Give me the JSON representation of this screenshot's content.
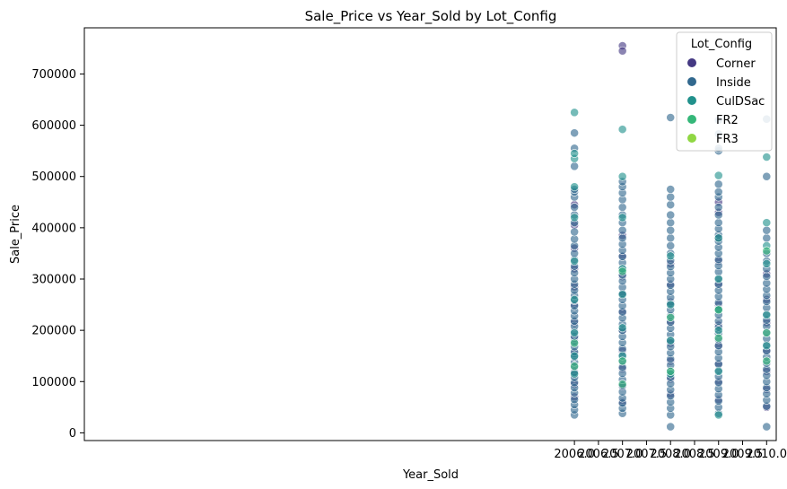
{
  "chart_data": {
    "type": "scatter",
    "title": "Sale_Price vs Year_Sold by Lot_Config",
    "xlabel": "Year_Sold",
    "ylabel": "Sale_Price",
    "xlim": [
      1995.8,
      2010.2
    ],
    "ylim": [
      -15000,
      790000
    ],
    "xticks": [
      2006.0,
      2006.5,
      2007.0,
      2007.5,
      2008.0,
      2008.5,
      2009.0,
      2009.5,
      2010.0
    ],
    "xtick_labels": [
      "2006.0",
      "2006.5",
      "2007.0",
      "2007.5",
      "2008.0",
      "2008.5",
      "2009.0",
      "2009.5",
      "2010.0"
    ],
    "yticks": [
      0,
      100000,
      200000,
      300000,
      400000,
      500000,
      600000,
      700000
    ],
    "ytick_labels": [
      "0",
      "100000",
      "200000",
      "300000",
      "400000",
      "500000",
      "600000",
      "700000"
    ],
    "grid": false,
    "legend": {
      "title": "Lot_Config",
      "placement": "top-right"
    },
    "series": [
      {
        "name": "Corner",
        "color": "#443983",
        "points": [
          [
            2006,
            70000
          ],
          [
            2006,
            95000
          ],
          [
            2006,
            120000
          ],
          [
            2006,
            155000
          ],
          [
            2006,
            185000
          ],
          [
            2006,
            215000
          ],
          [
            2006,
            250000
          ],
          [
            2006,
            285000
          ],
          [
            2006,
            320000
          ],
          [
            2006,
            360000
          ],
          [
            2006,
            405000
          ],
          [
            2006,
            445000
          ],
          [
            2007,
            60000
          ],
          [
            2007,
            90000
          ],
          [
            2007,
            125000
          ],
          [
            2007,
            160000
          ],
          [
            2007,
            200000
          ],
          [
            2007,
            235000
          ],
          [
            2007,
            270000
          ],
          [
            2007,
            305000
          ],
          [
            2007,
            345000
          ],
          [
            2007,
            385000
          ],
          [
            2007,
            755000
          ],
          [
            2007,
            745000
          ],
          [
            2008,
            75000
          ],
          [
            2008,
            105000
          ],
          [
            2008,
            140000
          ],
          [
            2008,
            175000
          ],
          [
            2008,
            215000
          ],
          [
            2008,
            255000
          ],
          [
            2008,
            290000
          ],
          [
            2008,
            330000
          ],
          [
            2009,
            65000
          ],
          [
            2009,
            100000
          ],
          [
            2009,
            135000
          ],
          [
            2009,
            170000
          ],
          [
            2009,
            210000
          ],
          [
            2009,
            250000
          ],
          [
            2009,
            290000
          ],
          [
            2009,
            335000
          ],
          [
            2009,
            380000
          ],
          [
            2009,
            430000
          ],
          [
            2009,
            450000
          ],
          [
            2010,
            50000
          ],
          [
            2010,
            85000
          ],
          [
            2010,
            120000
          ],
          [
            2010,
            160000
          ],
          [
            2010,
            215000
          ],
          [
            2010,
            260000
          ],
          [
            2010,
            310000
          ]
        ]
      },
      {
        "name": "Inside",
        "color": "#31688e",
        "points": [
          [
            2006,
            35000
          ],
          [
            2006,
            45000
          ],
          [
            2006,
            55000
          ],
          [
            2006,
            65000
          ],
          [
            2006,
            78000
          ],
          [
            2006,
            88000
          ],
          [
            2006,
            98000
          ],
          [
            2006,
            108000
          ],
          [
            2006,
            118000
          ],
          [
            2006,
            128000
          ],
          [
            2006,
            138000
          ],
          [
            2006,
            148000
          ],
          [
            2006,
            158000
          ],
          [
            2006,
            168000
          ],
          [
            2006,
            178000
          ],
          [
            2006,
            188000
          ],
          [
            2006,
            198000
          ],
          [
            2006,
            208000
          ],
          [
            2006,
            218000
          ],
          [
            2006,
            228000
          ],
          [
            2006,
            238000
          ],
          [
            2006,
            248000
          ],
          [
            2006,
            258000
          ],
          [
            2006,
            268000
          ],
          [
            2006,
            278000
          ],
          [
            2006,
            290000
          ],
          [
            2006,
            300000
          ],
          [
            2006,
            312000
          ],
          [
            2006,
            325000
          ],
          [
            2006,
            338000
          ],
          [
            2006,
            350000
          ],
          [
            2006,
            365000
          ],
          [
            2006,
            378000
          ],
          [
            2006,
            392000
          ],
          [
            2006,
            410000
          ],
          [
            2006,
            425000
          ],
          [
            2006,
            440000
          ],
          [
            2006,
            460000
          ],
          [
            2006,
            470000
          ],
          [
            2006,
            475000
          ],
          [
            2006,
            520000
          ],
          [
            2006,
            555000
          ],
          [
            2006,
            585000
          ],
          [
            2007,
            38000
          ],
          [
            2007,
            48000
          ],
          [
            2007,
            58000
          ],
          [
            2007,
            68000
          ],
          [
            2007,
            80000
          ],
          [
            2007,
            92000
          ],
          [
            2007,
            104000
          ],
          [
            2007,
            116000
          ],
          [
            2007,
            128000
          ],
          [
            2007,
            140000
          ],
          [
            2007,
            152000
          ],
          [
            2007,
            164000
          ],
          [
            2007,
            176000
          ],
          [
            2007,
            188000
          ],
          [
            2007,
            200000
          ],
          [
            2007,
            212000
          ],
          [
            2007,
            224000
          ],
          [
            2007,
            236000
          ],
          [
            2007,
            248000
          ],
          [
            2007,
            260000
          ],
          [
            2007,
            272000
          ],
          [
            2007,
            284000
          ],
          [
            2007,
            296000
          ],
          [
            2007,
            308000
          ],
          [
            2007,
            320000
          ],
          [
            2007,
            332000
          ],
          [
            2007,
            344000
          ],
          [
            2007,
            356000
          ],
          [
            2007,
            368000
          ],
          [
            2007,
            380000
          ],
          [
            2007,
            395000
          ],
          [
            2007,
            410000
          ],
          [
            2007,
            425000
          ],
          [
            2007,
            440000
          ],
          [
            2007,
            455000
          ],
          [
            2007,
            468000
          ],
          [
            2007,
            480000
          ],
          [
            2007,
            490000
          ],
          [
            2008,
            12000
          ],
          [
            2008,
            35000
          ],
          [
            2008,
            48000
          ],
          [
            2008,
            60000
          ],
          [
            2008,
            72000
          ],
          [
            2008,
            84000
          ],
          [
            2008,
            96000
          ],
          [
            2008,
            108000
          ],
          [
            2008,
            120000
          ],
          [
            2008,
            132000
          ],
          [
            2008,
            144000
          ],
          [
            2008,
            156000
          ],
          [
            2008,
            168000
          ],
          [
            2008,
            180000
          ],
          [
            2008,
            192000
          ],
          [
            2008,
            204000
          ],
          [
            2008,
            216000
          ],
          [
            2008,
            228000
          ],
          [
            2008,
            240000
          ],
          [
            2008,
            252000
          ],
          [
            2008,
            264000
          ],
          [
            2008,
            276000
          ],
          [
            2008,
            288000
          ],
          [
            2008,
            300000
          ],
          [
            2008,
            312000
          ],
          [
            2008,
            324000
          ],
          [
            2008,
            336000
          ],
          [
            2008,
            350000
          ],
          [
            2008,
            365000
          ],
          [
            2008,
            380000
          ],
          [
            2008,
            395000
          ],
          [
            2008,
            410000
          ],
          [
            2008,
            425000
          ],
          [
            2008,
            445000
          ],
          [
            2008,
            460000
          ],
          [
            2008,
            475000
          ],
          [
            2008,
            615000
          ],
          [
            2009,
            38000
          ],
          [
            2009,
            50000
          ],
          [
            2009,
            62000
          ],
          [
            2009,
            74000
          ],
          [
            2009,
            86000
          ],
          [
            2009,
            98000
          ],
          [
            2009,
            110000
          ],
          [
            2009,
            122000
          ],
          [
            2009,
            134000
          ],
          [
            2009,
            146000
          ],
          [
            2009,
            158000
          ],
          [
            2009,
            170000
          ],
          [
            2009,
            182000
          ],
          [
            2009,
            194000
          ],
          [
            2009,
            206000
          ],
          [
            2009,
            218000
          ],
          [
            2009,
            230000
          ],
          [
            2009,
            242000
          ],
          [
            2009,
            254000
          ],
          [
            2009,
            266000
          ],
          [
            2009,
            278000
          ],
          [
            2009,
            290000
          ],
          [
            2009,
            302000
          ],
          [
            2009,
            314000
          ],
          [
            2009,
            326000
          ],
          [
            2009,
            338000
          ],
          [
            2009,
            350000
          ],
          [
            2009,
            362000
          ],
          [
            2009,
            374000
          ],
          [
            2009,
            386000
          ],
          [
            2009,
            398000
          ],
          [
            2009,
            410000
          ],
          [
            2009,
            425000
          ],
          [
            2009,
            440000
          ],
          [
            2009,
            460000
          ],
          [
            2009,
            470000
          ],
          [
            2009,
            485000
          ],
          [
            2009,
            550000
          ],
          [
            2009,
            555000
          ],
          [
            2009,
            583000
          ],
          [
            2009,
            610000
          ],
          [
            2010,
            12000
          ],
          [
            2010,
            52000
          ],
          [
            2010,
            64000
          ],
          [
            2010,
            76000
          ],
          [
            2010,
            88000
          ],
          [
            2010,
            100000
          ],
          [
            2010,
            112000
          ],
          [
            2010,
            124000
          ],
          [
            2010,
            136000
          ],
          [
            2010,
            148000
          ],
          [
            2010,
            160000
          ],
          [
            2010,
            172000
          ],
          [
            2010,
            184000
          ],
          [
            2010,
            196000
          ],
          [
            2010,
            208000
          ],
          [
            2010,
            220000
          ],
          [
            2010,
            232000
          ],
          [
            2010,
            244000
          ],
          [
            2010,
            256000
          ],
          [
            2010,
            268000
          ],
          [
            2010,
            280000
          ],
          [
            2010,
            292000
          ],
          [
            2010,
            305000
          ],
          [
            2010,
            320000
          ],
          [
            2010,
            335000
          ],
          [
            2010,
            350000
          ],
          [
            2010,
            380000
          ],
          [
            2010,
            395000
          ],
          [
            2010,
            500000
          ],
          [
            2010,
            612000
          ]
        ]
      },
      {
        "name": "CulDSac",
        "color": "#21918c",
        "points": [
          [
            2006,
            115000
          ],
          [
            2006,
            150000
          ],
          [
            2006,
            195000
          ],
          [
            2006,
            260000
          ],
          [
            2006,
            335000
          ],
          [
            2006,
            420000
          ],
          [
            2006,
            480000
          ],
          [
            2006,
            535000
          ],
          [
            2006,
            545000
          ],
          [
            2006,
            625000
          ],
          [
            2007,
            150000
          ],
          [
            2007,
            205000
          ],
          [
            2007,
            270000
          ],
          [
            2007,
            320000
          ],
          [
            2007,
            420000
          ],
          [
            2007,
            500000
          ],
          [
            2007,
            592000
          ],
          [
            2008,
            115000
          ],
          [
            2008,
            180000
          ],
          [
            2008,
            250000
          ],
          [
            2008,
            345000
          ],
          [
            2009,
            35000
          ],
          [
            2009,
            120000
          ],
          [
            2009,
            200000
          ],
          [
            2009,
            240000
          ],
          [
            2009,
            300000
          ],
          [
            2009,
            380000
          ],
          [
            2009,
            502000
          ],
          [
            2010,
            170000
          ],
          [
            2010,
            230000
          ],
          [
            2010,
            330000
          ],
          [
            2010,
            365000
          ],
          [
            2010,
            410000
          ],
          [
            2010,
            538000
          ]
        ]
      },
      {
        "name": "FR2",
        "color": "#35b779",
        "points": [
          [
            2006,
            130000
          ],
          [
            2006,
            175000
          ],
          [
            2007,
            95000
          ],
          [
            2007,
            140000
          ],
          [
            2007,
            315000
          ],
          [
            2008,
            120000
          ],
          [
            2008,
            225000
          ],
          [
            2009,
            185000
          ],
          [
            2009,
            240000
          ],
          [
            2010,
            140000
          ],
          [
            2010,
            195000
          ],
          [
            2010,
            355000
          ]
        ]
      },
      {
        "name": "FR3",
        "color": "#90d743",
        "points": []
      }
    ]
  }
}
